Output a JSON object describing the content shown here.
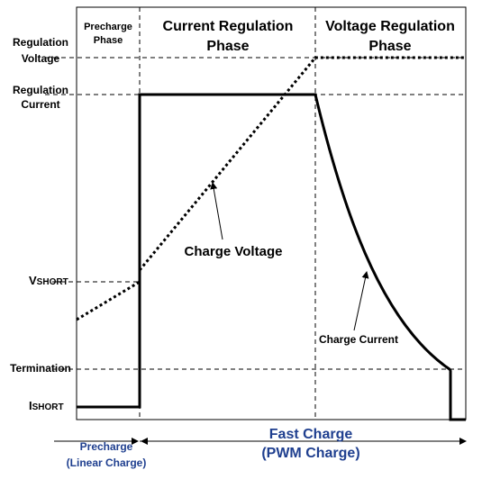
{
  "phases": [
    {
      "lines": [
        "Precharge",
        "Phase"
      ]
    },
    {
      "lines": [
        "Current Regulation",
        "Phase"
      ]
    },
    {
      "lines": [
        "Voltage Regulation",
        "Phase"
      ]
    }
  ],
  "levels": [
    {
      "lines": [
        "Regulation",
        "Voltage"
      ]
    },
    {
      "lines": [
        "Regulation",
        "Current"
      ]
    },
    {
      "main": "V",
      "sub": "SHORT"
    },
    {
      "lines": [
        "Termination"
      ]
    },
    {
      "main": "I",
      "sub": "SHORT"
    }
  ],
  "annotations": {
    "charge_voltage": "Charge Voltage",
    "charge_current": "Charge Current"
  },
  "modes": [
    {
      "lines": [
        "Precharge",
        "(Linear Charge)"
      ]
    },
    {
      "lines": [
        "Fast Charge",
        "(PWM Charge)"
      ]
    }
  ]
}
